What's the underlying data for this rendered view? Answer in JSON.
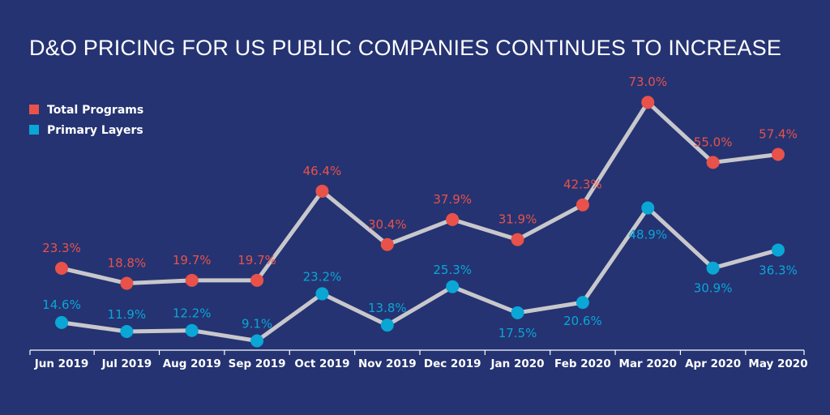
{
  "chart_data": {
    "type": "line",
    "title": "D&O PRICING FOR US PUBLIC COMPANIES CONTINUES TO INCREASE",
    "categories": [
      "Jun 2019",
      "Jul 2019",
      "Aug 2019",
      "Sep 2019",
      "Oct 2019",
      "Nov 2019",
      "Dec 2019",
      "Jan 2020",
      "Feb 2020",
      "Mar 2020",
      "Apr 2020",
      "May 2020"
    ],
    "series": [
      {
        "name": "Total Programs",
        "values": [
          23.3,
          18.8,
          19.7,
          19.7,
          46.4,
          30.4,
          37.9,
          31.9,
          42.3,
          73.0,
          55.0,
          57.4
        ],
        "labels": [
          "23.3%",
          "18.8%",
          "19.7%",
          "19.7%",
          "46.4%",
          "30.4%",
          "37.9%",
          "31.9%",
          "42.3%",
          "73.0%",
          "55.0%",
          "57.4%"
        ],
        "color": "#e8524a"
      },
      {
        "name": "Primary Layers",
        "values": [
          14.6,
          11.9,
          12.2,
          9.1,
          23.2,
          13.8,
          25.3,
          17.5,
          20.6,
          48.9,
          30.9,
          36.3
        ],
        "labels": [
          "14.6%",
          "11.9%",
          "12.2%",
          "9.1%",
          "23.2%",
          "13.8%",
          "25.3%",
          "17.5%",
          "20.6%",
          "48.9%",
          "30.9%",
          "36.3%"
        ],
        "color": "#0aa6d6"
      }
    ],
    "line_color": "#c8c8cc",
    "axis_color": "#ffffff",
    "background": "#253372",
    "legend_position": "top-left",
    "grid": false
  }
}
